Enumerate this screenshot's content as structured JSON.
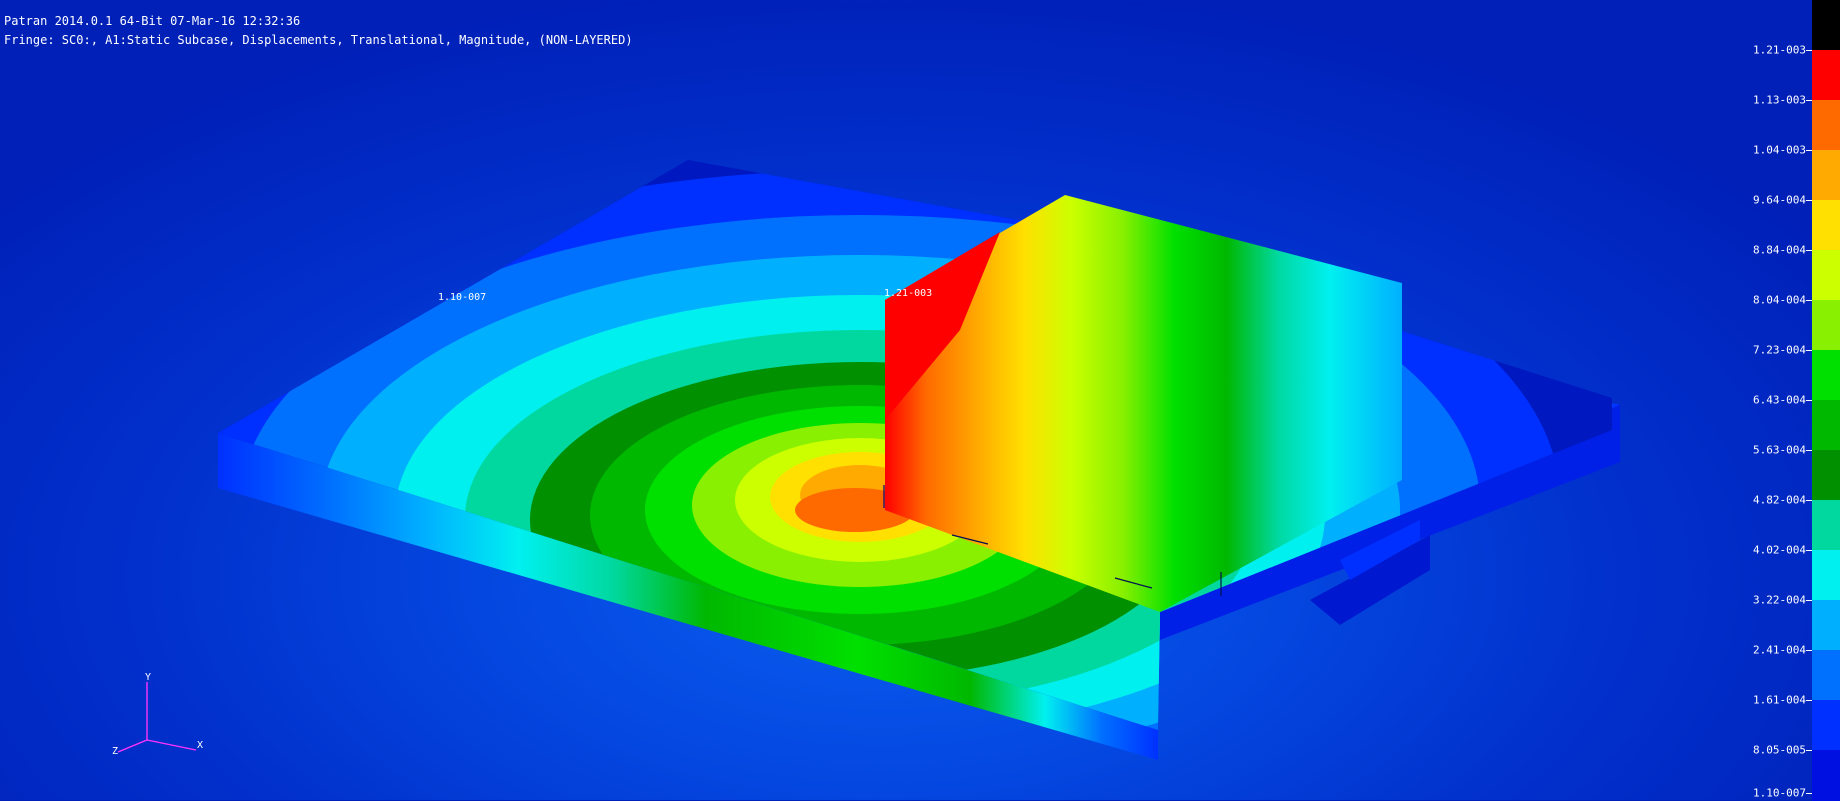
{
  "header": {
    "title": "Patran 2014.0.1 64-Bit 07-Mar-16 12:32:36",
    "fringe": "Fringe: SC0:, A1:Static Subcase, Displacements, Translational, Magnitude, (NON-LAYERED)"
  },
  "viewport": {
    "min_label": "1.10-007",
    "max_label": "1.21-003"
  },
  "triad": {
    "x": "X",
    "y": "Y",
    "z": "Z"
  },
  "legend": {
    "values": [
      "1.21-003",
      "1.13-003",
      "1.04-003",
      "9.64-004",
      "8.84-004",
      "8.04-004",
      "7.23-004",
      "6.43-004",
      "5.63-004",
      "4.82-004",
      "4.02-004",
      "3.22-004",
      "2.41-004",
      "1.61-004",
      "8.05-005",
      "1.10-007"
    ],
    "colors": [
      "#000000",
      "#ff0000",
      "#ff6a00",
      "#ffaa00",
      "#ffe000",
      "#ccff00",
      "#88f000",
      "#00e000",
      "#00b800",
      "#009000",
      "#00d8a0",
      "#00f0f0",
      "#00b0ff",
      "#0070ff",
      "#0030ff",
      "#0010e0"
    ]
  }
}
